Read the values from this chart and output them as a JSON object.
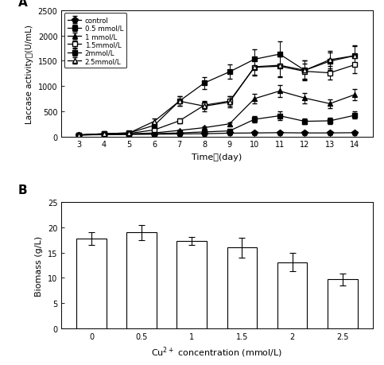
{
  "days": [
    3,
    4,
    5,
    6,
    7,
    8,
    9,
    10,
    11,
    12,
    13,
    14
  ],
  "laccase": {
    "control": [
      30,
      35,
      40,
      45,
      50,
      55,
      65,
      70,
      75,
      70,
      70,
      75
    ],
    "0.5mmol": [
      30,
      40,
      50,
      55,
      70,
      90,
      110,
      340,
      410,
      300,
      310,
      420
    ],
    "1mmol": [
      30,
      40,
      50,
      70,
      120,
      175,
      250,
      750,
      900,
      760,
      650,
      830
    ],
    "1.5mmol": [
      30,
      50,
      60,
      130,
      310,
      620,
      700,
      1370,
      1390,
      1290,
      1260,
      1420
    ],
    "2mmol": [
      30,
      55,
      70,
      220,
      700,
      1060,
      1280,
      1530,
      1630,
      1310,
      1490,
      1600
    ],
    "2.5mmol": [
      30,
      55,
      70,
      300,
      700,
      600,
      680,
      1380,
      1410,
      1310,
      1520,
      1600
    ]
  },
  "laccase_err": {
    "control": [
      5,
      5,
      5,
      5,
      5,
      5,
      8,
      10,
      10,
      10,
      10,
      10
    ],
    "0.5mmol": [
      5,
      5,
      5,
      5,
      10,
      10,
      15,
      60,
      80,
      60,
      60,
      70
    ],
    "1mmol": [
      5,
      5,
      5,
      10,
      20,
      25,
      35,
      100,
      120,
      100,
      90,
      110
    ],
    "1.5mmol": [
      5,
      8,
      10,
      20,
      50,
      70,
      90,
      150,
      200,
      150,
      130,
      160
    ],
    "2mmol": [
      5,
      8,
      10,
      40,
      100,
      120,
      140,
      200,
      250,
      200,
      180,
      200
    ],
    "2.5mmol": [
      5,
      8,
      10,
      50,
      100,
      100,
      110,
      180,
      230,
      190,
      170,
      190
    ]
  },
  "series_labels": [
    "control",
    "0.5 mmol/L",
    "1 mmol/L",
    "1.5mmol/L",
    "2mmol/L",
    "2.5mmol/L"
  ],
  "series_keys": [
    "control",
    "0.5mmol",
    "1mmol",
    "1.5mmol",
    "2mmol",
    "2.5mmol"
  ],
  "markers": [
    "p",
    "s",
    "^",
    "s",
    "s",
    "^"
  ],
  "fillstyles": [
    "full",
    "full",
    "full",
    "none",
    "full",
    "none"
  ],
  "bar_categories": [
    0,
    1,
    2,
    3,
    4,
    5
  ],
  "bar_xtick_labels": [
    "0",
    "0.5",
    "1",
    "1.5",
    "2",
    "2.5"
  ],
  "bar_values": [
    17.8,
    19.0,
    17.3,
    16.0,
    13.1,
    9.7
  ],
  "bar_errors": [
    1.2,
    1.5,
    0.8,
    2.0,
    1.8,
    1.2
  ],
  "bar_width": 0.6,
  "ylim_laccase": [
    0,
    2500
  ],
  "ylim_biomass": [
    0,
    25
  ],
  "yticks_laccase": [
    0,
    500,
    1000,
    1500,
    2000,
    2500
  ],
  "yticks_biomass": [
    0,
    5,
    10,
    15,
    20,
    25
  ],
  "label_A": "A",
  "label_B": "B",
  "bar_facecolor": "#ffffff",
  "bar_edgecolor": "#000000"
}
